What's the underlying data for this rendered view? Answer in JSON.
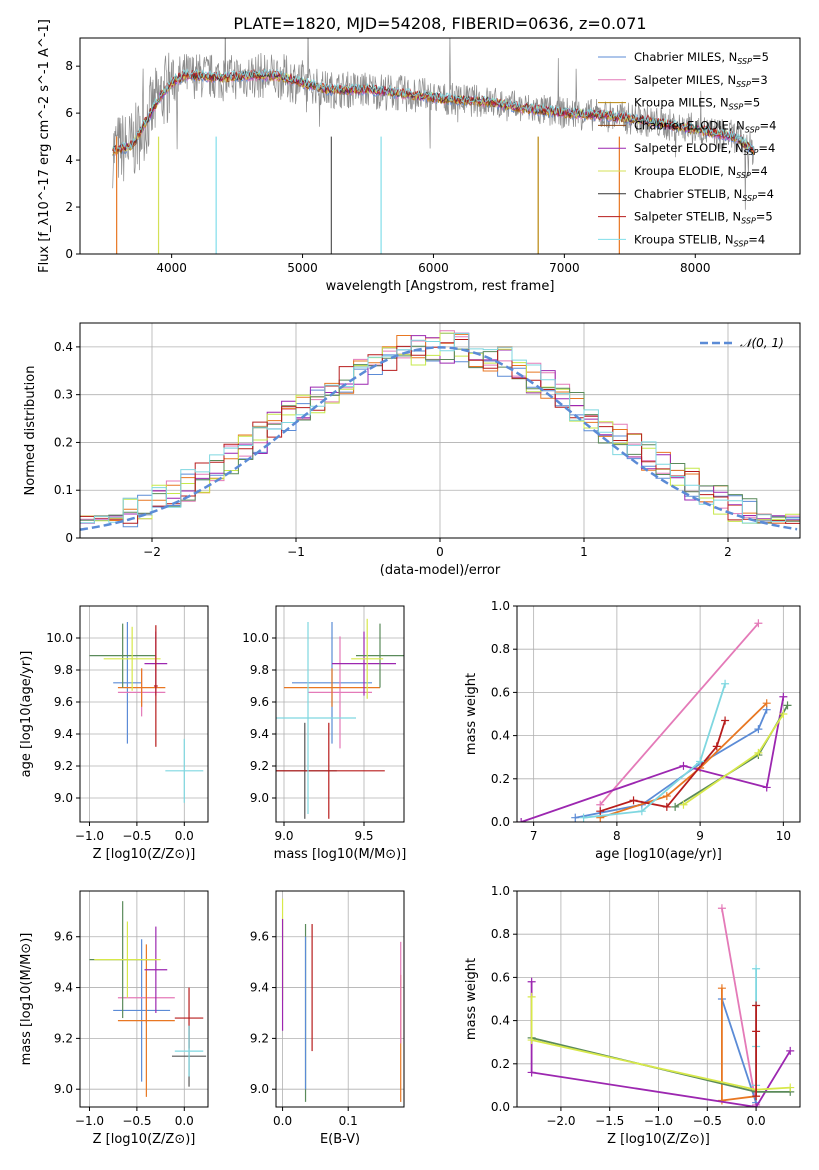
{
  "title": "PLATE=1820, MJD=54208, FIBERID=0636, z=0.071",
  "colors": {
    "chabrier_miles": "#5b8bd6",
    "salpeter_miles": "#e47ab8",
    "kroupa_miles": "#e87722",
    "chabrier_elodie": "#8a2be2",
    "salpeter_elodie": "#9c27b0",
    "kroupa_elodie": "#c6e84a",
    "chabrier_stelib": "#555555",
    "salpeter_stelib": "#b71c1c",
    "kroupa_stelib": "#7fd7e0",
    "data_grey": "#8a8a8a",
    "normal_curve": "#5b8bd6",
    "green_model": "#5a8a5a",
    "yellow_model": "#d7e84a"
  },
  "chart_data": [
    {
      "id": "spectrum",
      "type": "line",
      "xlabel": "wavelength [Angstrom, rest frame]",
      "ylabel": "Flux [f_λ10^-17 erg cm^-2 s^-1 A^-1]",
      "xlim": [
        3300,
        8800
      ],
      "ylim": [
        0,
        9.2
      ],
      "xticks": [
        4000,
        5000,
        6000,
        7000,
        8000
      ],
      "yticks": [
        0,
        2,
        4,
        6,
        8
      ],
      "grid": false,
      "legend_position": "top-right",
      "legend": [
        {
          "label": "Chabrier MILES, N_SSP=5",
          "color": "#5b8bd6"
        },
        {
          "label": "Salpeter MILES, N_SSP=3",
          "color": "#e47ab8"
        },
        {
          "label": "Kroupa MILES, N_SSP=5",
          "color": "#b8860b"
        },
        {
          "label": "Chabrier ELODIE, N_SSP=4",
          "color": "#8b4513"
        },
        {
          "label": "Salpeter ELODIE, N_SSP=4",
          "color": "#9c27b0"
        },
        {
          "label": "Kroupa ELODIE, N_SSP=4",
          "color": "#d4e157"
        },
        {
          "label": "Chabrier STELIB, N_SSP=4",
          "color": "#333333"
        },
        {
          "label": "Salpeter STELIB, N_SSP=5",
          "color": "#b71c1c"
        },
        {
          "label": "Kroupa STELIB, N_SSP=4",
          "color": "#80deea"
        }
      ],
      "continuum": [
        [
          3550,
          4.4
        ],
        [
          3700,
          4.6
        ],
        [
          3800,
          5.6
        ],
        [
          3900,
          6.6
        ],
        [
          4000,
          7.3
        ],
        [
          4100,
          7.6
        ],
        [
          4200,
          7.6
        ],
        [
          4400,
          7.5
        ],
        [
          4600,
          7.6
        ],
        [
          4800,
          7.6
        ],
        [
          5000,
          7.3
        ],
        [
          5200,
          7.0
        ],
        [
          5500,
          7.0
        ],
        [
          5800,
          6.8
        ],
        [
          6100,
          6.6
        ],
        [
          6400,
          6.5
        ],
        [
          6700,
          6.2
        ],
        [
          7000,
          6.0
        ],
        [
          7300,
          5.9
        ],
        [
          7600,
          5.7
        ],
        [
          8000,
          5.3
        ],
        [
          8300,
          5.0
        ],
        [
          8450,
          4.4
        ]
      ]
    },
    {
      "id": "residuals",
      "type": "histogram",
      "xlabel": "(data-model)/error",
      "ylabel": "Normed distribution",
      "xlim": [
        -2.5,
        2.5
      ],
      "ylim": [
        0,
        0.45
      ],
      "xticks": [
        -2,
        -1,
        0,
        1,
        2
      ],
      "yticks": [
        0.0,
        0.1,
        0.2,
        0.3,
        0.4
      ],
      "grid": true,
      "legend_position": "top-right",
      "legend": [
        {
          "label": "𝒩(0, 1)",
          "color": "#5b8bd6"
        }
      ]
    },
    {
      "id": "age_vs_Z",
      "type": "errorbar",
      "xlabel": "Z [log10(Z/Z⊙)]",
      "ylabel": "age  [log10(age/yr)]",
      "xlim": [
        -1.1,
        0.25
      ],
      "ylim": [
        8.85,
        10.2
      ],
      "xticks": [
        -1.0,
        -0.5,
        0.0
      ],
      "yticks": [
        9.0,
        9.2,
        9.4,
        9.6,
        9.8,
        10.0
      ],
      "grid": true,
      "points": [
        {
          "x": -0.6,
          "y": 9.72,
          "xerr": 0.15,
          "yerr": 0.38,
          "color": "#5b8bd6"
        },
        {
          "x": -0.45,
          "y": 9.66,
          "xerr": 0.25,
          "yerr": 0.15,
          "color": "#e47ab8"
        },
        {
          "x": -0.45,
          "y": 9.69,
          "xerr": 0.25,
          "yerr": 0.12,
          "color": "#e87722"
        },
        {
          "x": -0.3,
          "y": 9.84,
          "xerr": 0.12,
          "yerr": 0.2,
          "color": "#9c27b0"
        },
        {
          "x": -0.65,
          "y": 9.89,
          "xerr": 0.35,
          "yerr": 0.2,
          "color": "#5a8a5a"
        },
        {
          "x": -0.55,
          "y": 9.87,
          "xerr": 0.3,
          "yerr": 0.2,
          "color": "#d7e84a"
        },
        {
          "x": -0.3,
          "y": 9.7,
          "xerr": 0.02,
          "yerr": 0.38,
          "color": "#b71c1c"
        },
        {
          "x": 0.0,
          "y": 9.17,
          "xerr": 0.2,
          "yerr": 0.2,
          "color": "#7fd7e0"
        }
      ]
    },
    {
      "id": "age_vs_mass",
      "type": "errorbar",
      "xlabel": "mass [log10(M/M⊙)]",
      "ylabel": "",
      "xlim": [
        8.95,
        9.75
      ],
      "ylim": [
        8.85,
        10.2
      ],
      "xticks": [
        9.0,
        9.5
      ],
      "yticks": [
        9.0,
        9.2,
        9.4,
        9.6,
        9.8,
        10.0
      ],
      "grid": true,
      "points": [
        {
          "x": 9.3,
          "y": 9.72,
          "xerr": 0.25,
          "yerr": 0.38,
          "color": "#5b8bd6"
        },
        {
          "x": 9.35,
          "y": 9.66,
          "xerr": 0.2,
          "yerr": 0.35,
          "color": "#e47ab8"
        },
        {
          "x": 9.3,
          "y": 9.69,
          "xerr": 0.3,
          "yerr": 0.12,
          "color": "#e87722"
        },
        {
          "x": 9.5,
          "y": 9.84,
          "xerr": 0.2,
          "yerr": 0.2,
          "color": "#9c27b0"
        },
        {
          "x": 9.6,
          "y": 9.89,
          "xerr": 0.15,
          "yerr": 0.2,
          "color": "#5a8a5a"
        },
        {
          "x": 9.52,
          "y": 9.87,
          "xerr": 0.1,
          "yerr": 0.25,
          "color": "#d7e84a"
        },
        {
          "x": 9.13,
          "y": 9.17,
          "xerr": 0.2,
          "yerr": 0.3,
          "color": "#555555"
        },
        {
          "x": 9.28,
          "y": 9.17,
          "xerr": 0.35,
          "yerr": 0.3,
          "color": "#b71c1c"
        },
        {
          "x": 9.15,
          "y": 9.5,
          "xerr": 0.3,
          "yerr": 0.6,
          "color": "#7fd7e0"
        }
      ]
    },
    {
      "id": "massweight_vs_age",
      "type": "line",
      "xlabel": "age  [log10(age/yr)]",
      "ylabel": "mass weight",
      "xlim": [
        6.8,
        10.2
      ],
      "ylim": [
        0,
        1.0
      ],
      "xticks": [
        7,
        8,
        9,
        10
      ],
      "yticks": [
        0.0,
        0.2,
        0.4,
        0.6,
        0.8,
        1.0
      ],
      "grid": true,
      "series": [
        {
          "color": "#e47ab8",
          "points": [
            [
              7.8,
              0.08
            ],
            [
              9.7,
              0.92
            ]
          ]
        },
        {
          "color": "#5b8bd6",
          "points": [
            [
              7.5,
              0.02
            ],
            [
              8.3,
              0.08
            ],
            [
              9.0,
              0.27
            ],
            [
              9.7,
              0.43
            ],
            [
              9.8,
              0.52
            ]
          ]
        },
        {
          "color": "#e87722",
          "points": [
            [
              7.8,
              0.02
            ],
            [
              8.6,
              0.12
            ],
            [
              9.0,
              0.25
            ],
            [
              9.8,
              0.55
            ]
          ]
        },
        {
          "color": "#9c27b0",
          "points": [
            [
              6.85,
              0.0
            ],
            [
              8.8,
              0.26
            ],
            [
              9.8,
              0.16
            ],
            [
              10.0,
              0.58
            ]
          ]
        },
        {
          "color": "#b71c1c",
          "points": [
            [
              7.8,
              0.05
            ],
            [
              8.2,
              0.1
            ],
            [
              8.6,
              0.07
            ],
            [
              9.2,
              0.35
            ],
            [
              9.3,
              0.47
            ]
          ]
        },
        {
          "color": "#5a8a5a",
          "points": [
            [
              8.7,
              0.07
            ],
            [
              9.7,
              0.31
            ],
            [
              10.05,
              0.54
            ]
          ]
        },
        {
          "color": "#d7e84a",
          "points": [
            [
              8.8,
              0.08
            ],
            [
              9.7,
              0.32
            ],
            [
              10.0,
              0.5
            ]
          ]
        },
        {
          "color": "#7fd7e0",
          "points": [
            [
              7.6,
              0.02
            ],
            [
              8.3,
              0.05
            ],
            [
              9.0,
              0.28
            ],
            [
              9.3,
              0.64
            ]
          ]
        }
      ]
    },
    {
      "id": "mass_vs_Z",
      "type": "errorbar",
      "xlabel": "Z [log10(Z/Z⊙)]",
      "ylabel": "mass [log10(M/M⊙)]",
      "xlim": [
        -1.1,
        0.25
      ],
      "ylim": [
        8.93,
        9.78
      ],
      "xticks": [
        -1.0,
        -0.5,
        0.0
      ],
      "yticks": [
        9.0,
        9.2,
        9.4,
        9.6
      ],
      "grid": true,
      "points": [
        {
          "x": -0.45,
          "y": 9.31,
          "xerr": 0.3,
          "yerr": 0.28,
          "color": "#5b8bd6"
        },
        {
          "x": -0.4,
          "y": 9.36,
          "xerr": 0.3,
          "yerr": 0.1,
          "color": "#e47ab8"
        },
        {
          "x": -0.4,
          "y": 9.27,
          "xerr": 0.3,
          "yerr": 0.3,
          "color": "#e87722"
        },
        {
          "x": -0.3,
          "y": 9.47,
          "xerr": 0.12,
          "yerr": 0.17,
          "color": "#9c27b0"
        },
        {
          "x": -0.65,
          "y": 9.51,
          "xerr": 0.35,
          "yerr": 0.23,
          "color": "#5a8a5a"
        },
        {
          "x": -0.6,
          "y": 9.51,
          "xerr": 0.35,
          "yerr": 0.15,
          "color": "#d7e84a"
        },
        {
          "x": 0.05,
          "y": 9.13,
          "xerr": 0.18,
          "yerr": 0.12,
          "color": "#555555"
        },
        {
          "x": 0.05,
          "y": 9.28,
          "xerr": 0.15,
          "yerr": 0.12,
          "color": "#b71c1c"
        },
        {
          "x": 0.05,
          "y": 9.15,
          "xerr": 0.15,
          "yerr": 0.1,
          "color": "#7fd7e0"
        }
      ]
    },
    {
      "id": "mass_vs_ebv",
      "type": "errorbar",
      "xlabel": "E(B-V)",
      "ylabel": "",
      "xlim": [
        -0.01,
        0.185
      ],
      "ylim": [
        8.93,
        9.78
      ],
      "xticks": [
        0.0,
        0.1
      ],
      "yticks": [
        9.0,
        9.2,
        9.4,
        9.6
      ],
      "grid": true,
      "points": [
        {
          "x": 0.0,
          "y": 9.55,
          "xerr": 0,
          "yerr": 0.2,
          "color": "#d7e84a"
        },
        {
          "x": 0.0,
          "y": 9.45,
          "xerr": 0,
          "yerr": 0.22,
          "color": "#9c27b0"
        },
        {
          "x": 0.035,
          "y": 9.3,
          "xerr": 0,
          "yerr": 0.35,
          "color": "#5a8a5a"
        },
        {
          "x": 0.035,
          "y": 9.3,
          "xerr": 0,
          "yerr": 0.3,
          "color": "#5b8bd6"
        },
        {
          "x": 0.045,
          "y": 9.4,
          "xerr": 0,
          "yerr": 0.25,
          "color": "#b71c1c"
        },
        {
          "x": 0.18,
          "y": 9.2,
          "xerr": 0,
          "yerr": 0.25,
          "color": "#e87722"
        },
        {
          "x": 0.18,
          "y": 9.38,
          "xerr": 0,
          "yerr": 0.2,
          "color": "#e47ab8"
        }
      ]
    },
    {
      "id": "massweight_vs_Z",
      "type": "line",
      "xlabel": "Z [log10(Z/Z⊙)]",
      "ylabel": "mass weight",
      "xlim": [
        -2.45,
        0.45
      ],
      "ylim": [
        0,
        1.0
      ],
      "xticks": [
        -2.0,
        -1.5,
        -1.0,
        -0.5,
        0.0
      ],
      "yticks": [
        0.0,
        0.2,
        0.4,
        0.6,
        0.8,
        1.0
      ],
      "grid": true,
      "series": [
        {
          "color": "#e47ab8",
          "points": [
            [
              -0.35,
              0.92
            ],
            [
              0.0,
              0.01
            ]
          ]
        },
        {
          "color": "#5b8bd6",
          "points": [
            [
              -0.35,
              0.5
            ],
            [
              0.0,
              0.02
            ]
          ]
        },
        {
          "color": "#e87722",
          "points": [
            [
              -0.35,
              0.55
            ],
            [
              -0.35,
              0.03
            ],
            [
              0.0,
              0.05
            ]
          ]
        },
        {
          "color": "#9c27b0",
          "points": [
            [
              -2.3,
              0.58
            ],
            [
              -2.3,
              0.16
            ],
            [
              0.0,
              0.0
            ],
            [
              0.35,
              0.26
            ]
          ]
        },
        {
          "color": "#5a8a5a",
          "points": [
            [
              -2.3,
              0.32
            ],
            [
              0.0,
              0.07
            ],
            [
              0.35,
              0.07
            ]
          ]
        },
        {
          "color": "#d7e84a",
          "points": [
            [
              -2.3,
              0.51
            ],
            [
              -2.3,
              0.31
            ],
            [
              0.0,
              0.08
            ],
            [
              0.35,
              0.09
            ]
          ]
        },
        {
          "color": "#7fd7e0",
          "points": [
            [
              0.0,
              0.64
            ],
            [
              0.0,
              0.28
            ],
            [
              0.0,
              0.1
            ]
          ]
        },
        {
          "color": "#b71c1c",
          "points": [
            [
              0.0,
              0.47
            ],
            [
              0.0,
              0.35
            ],
            [
              0.0,
              0.05
            ]
          ]
        }
      ]
    }
  ]
}
